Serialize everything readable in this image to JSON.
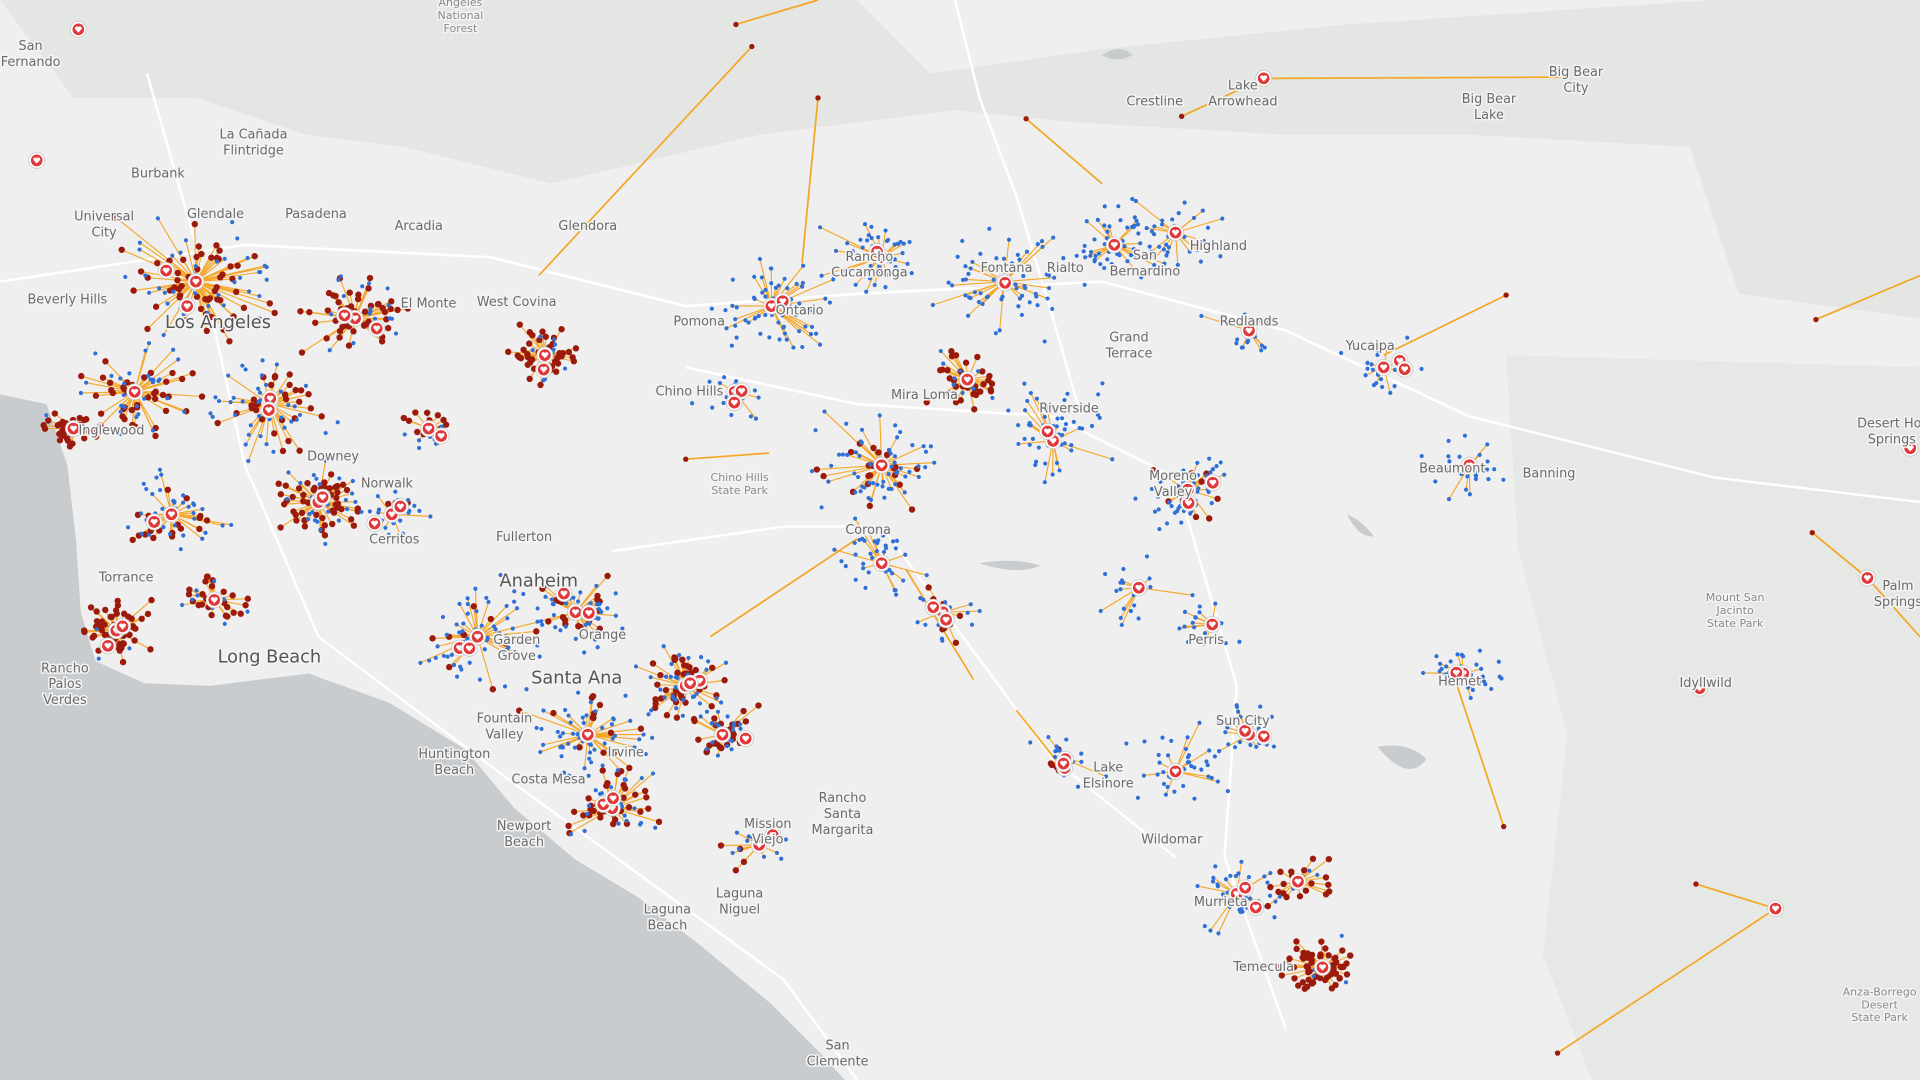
{
  "places": [
    [
      "San",
      "Fernando"
    ],
    [
      "Angeles",
      "National",
      "Forest"
    ],
    [
      "La Cañada",
      "Flintridge"
    ],
    [
      "Burbank"
    ],
    [
      "Universal",
      "City"
    ],
    [
      "Glendale"
    ],
    [
      "Pasadena"
    ],
    [
      "Arcadia"
    ],
    [
      "Glendora"
    ],
    [
      "Beverly Hills"
    ],
    [
      "Los Angeles"
    ],
    [
      "El Monte"
    ],
    [
      "West Covina"
    ],
    [
      "Inglewood"
    ],
    [
      "Downey"
    ],
    [
      "Norwalk"
    ],
    [
      "Cerritos"
    ],
    [
      "Torrance"
    ],
    [
      "Long Beach"
    ],
    [
      "Rancho",
      "Palos",
      "Verdes"
    ],
    [
      "Fullerton"
    ],
    [
      "Anaheim"
    ],
    [
      "Garden",
      "Grove"
    ],
    [
      "Orange"
    ],
    [
      "Santa Ana"
    ],
    [
      "Fountain",
      "Valley"
    ],
    [
      "Huntington",
      "Beach"
    ],
    [
      "Costa Mesa"
    ],
    [
      "Irvine"
    ],
    [
      "Newport",
      "Beach"
    ],
    [
      "Mission",
      "Viejo"
    ],
    [
      "Rancho",
      "Santa",
      "Margarita"
    ],
    [
      "Laguna",
      "Niguel"
    ],
    [
      "Laguna",
      "Beach"
    ],
    [
      "San",
      "Clemente"
    ],
    [
      "Pomona"
    ],
    [
      "Chino Hills"
    ],
    [
      "Chino Hills",
      "State Park"
    ],
    [
      "Ontario"
    ],
    [
      "Rancho",
      "Cucamonga"
    ],
    [
      "Fontana"
    ],
    [
      "Rialto"
    ],
    [
      "San",
      "Bernardino"
    ],
    [
      "Highland"
    ],
    [
      "Redlands"
    ],
    [
      "Grand",
      "Terrace"
    ],
    [
      "Yucaipa"
    ],
    [
      "Mira Loma"
    ],
    [
      "Riverside"
    ],
    [
      "Corona"
    ],
    [
      "Moreno",
      "Valley"
    ],
    [
      "Perris"
    ],
    [
      "Beaumont"
    ],
    [
      "Banning"
    ],
    [
      "Crestline"
    ],
    [
      "Lake",
      "Arrowhead"
    ],
    [
      "Big Bear",
      "City"
    ],
    [
      "Big Bear",
      "Lake"
    ],
    [
      "Lake",
      "Elsinore"
    ],
    [
      "Sun City"
    ],
    [
      "Hemet"
    ],
    [
      "Wildomar"
    ],
    [
      "Murrieta"
    ],
    [
      "Temecula"
    ],
    [
      "Idyllwild"
    ],
    [
      "Mount San",
      "Jacinto",
      "State Park"
    ],
    [
      "Palm",
      "Springs"
    ],
    [
      "Desert Hot",
      "Springs"
    ],
    [
      "Anza-Borrego",
      "Desert",
      "State Park"
    ]
  ]
}
